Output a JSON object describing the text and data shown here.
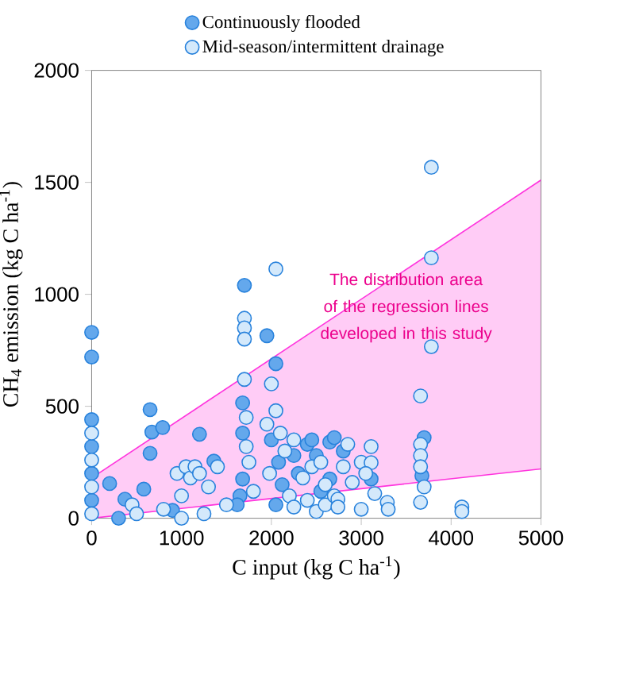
{
  "chart_data": {
    "type": "scatter",
    "xlabel": "C input (kg C ha$^{-1}$)",
    "ylabel": "CH$_{4}$ emission (kg C ha$^{-1}$)",
    "xlim": [
      0,
      5000
    ],
    "xticks": [
      0,
      1000,
      2000,
      3000,
      4000,
      5000
    ],
    "ylim": [
      0,
      2000
    ],
    "yticks": [
      0,
      500,
      1000,
      1500,
      2000
    ],
    "legend": "top",
    "marker": "circle",
    "grid": false,
    "annotations": [
      "The distribution area of the regression lines developed in this study"
    ],
    "series": [
      {
        "type": "line",
        "color": "#ff33dd",
        "x": [
          0,
          5000
        ],
        "values": [
          180,
          1510
        ],
        "lower": [
          0,
          220
        ],
        "upper": [
          180,
          1510
        ],
        "marker": "none"
      },
      {
        "type": "line",
        "color": "#ff33dd",
        "x": [
          0,
          5000
        ],
        "values": [
          0,
          220
        ],
        "marker": "none"
      },
      {
        "name": "Continuously flooded",
        "color": "#64a8ec",
        "x": [
          0,
          0,
          0,
          0,
          0,
          0,
          200,
          300,
          370,
          580,
          650,
          670,
          790,
          650,
          900,
          1200,
          1360,
          1700,
          1680,
          1680,
          1680,
          1650,
          1620,
          1950,
          2050,
          2000,
          2080,
          2120,
          2050,
          2250,
          2300,
          2400,
          2450,
          2500,
          2550,
          2650,
          2700,
          2650,
          2800,
          3110,
          3675,
          3700
        ],
        "values": [
          830,
          720,
          440,
          320,
          200,
          80,
          155,
          0,
          85,
          130,
          485,
          385,
          405,
          290,
          35,
          375,
          255,
          1040,
          515,
          380,
          175,
          100,
          60,
          815,
          690,
          350,
          250,
          150,
          60,
          280,
          200,
          330,
          350,
          280,
          120,
          340,
          360,
          175,
          300,
          175,
          190,
          360
        ]
      },
      {
        "name": "Mid-season/intermittent drainage",
        "color": "#d4e9fb",
        "x": [
          0,
          0,
          0,
          0,
          450,
          500,
          800,
          950,
          1000,
          1050,
          1100,
          1150,
          1200,
          1300,
          1400,
          1500,
          1000,
          1250,
          1700,
          1700,
          1700,
          1700,
          1720,
          1720,
          1750,
          1800,
          2050,
          2000,
          2050,
          1950,
          2100,
          1980,
          2150,
          2200,
          2250,
          2350,
          2400,
          2450,
          2500,
          2550,
          2600,
          2600,
          2700,
          2740,
          2740,
          2800,
          2850,
          2900,
          3000,
          3110,
          3110,
          3050,
          3150,
          3290,
          3300,
          3780,
          3780,
          3780,
          3660,
          3660,
          3660,
          3660,
          3700,
          3660,
          4120,
          4120,
          3000,
          2250
        ],
        "values": [
          380,
          260,
          140,
          20,
          60,
          20,
          40,
          200,
          100,
          230,
          180,
          230,
          200,
          140,
          230,
          60,
          0,
          20,
          893,
          850,
          800,
          620,
          450,
          320,
          250,
          120,
          1113,
          600,
          480,
          420,
          380,
          200,
          300,
          100,
          50,
          180,
          80,
          230,
          30,
          250,
          150,
          60,
          100,
          85,
          50,
          230,
          330,
          160,
          250,
          320,
          248,
          200,
          110,
          71,
          40,
          1567,
          1163,
          766,
          546,
          330,
          280,
          230,
          140,
          71,
          50,
          30,
          40,
          350
        ]
      }
    ]
  }
}
